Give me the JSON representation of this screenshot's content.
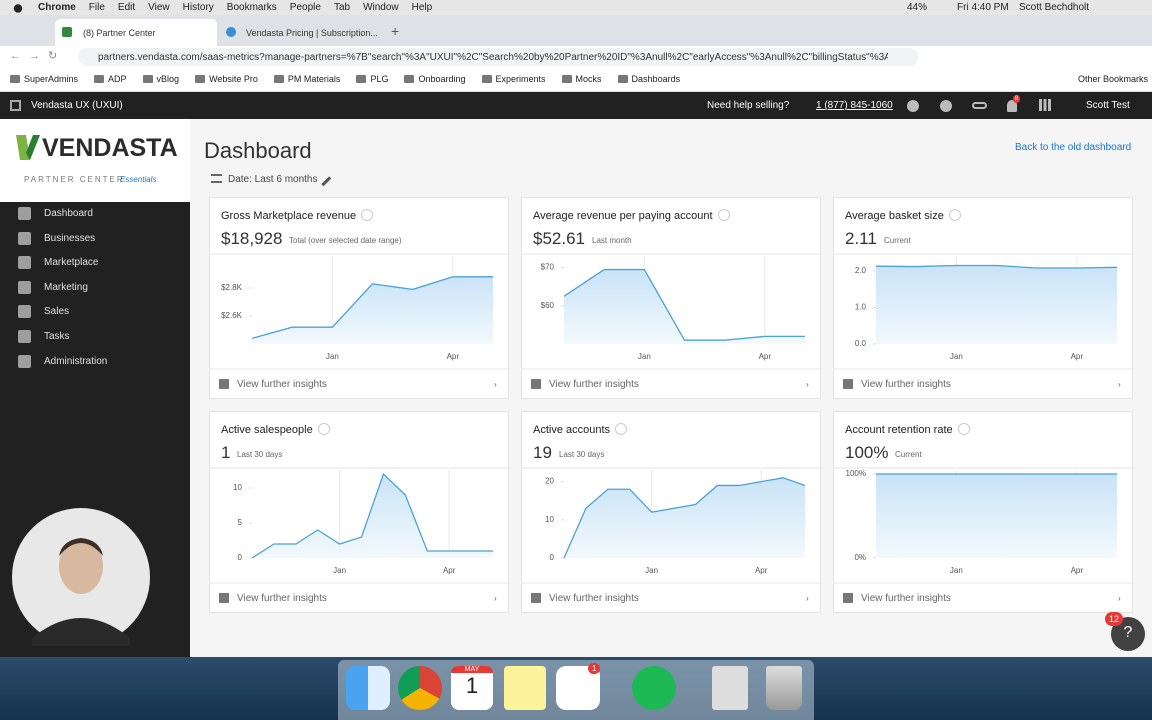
{
  "menu_bar": {
    "app": "Chrome",
    "items": [
      "File",
      "Edit",
      "View",
      "History",
      "Bookmarks",
      "People",
      "Tab",
      "Window",
      "Help"
    ],
    "battery": "44%",
    "clock": "Fri 4:40 PM",
    "user": "Scott Bechdholt"
  },
  "tabs": [
    "(8) Partner Center",
    "Vendasta Pricing | Subscription..."
  ],
  "url": "partners.vendasta.com/saas-metrics?manage-partners=%7B\"search\"%3A\"UXUI\"%2C\"Search%20by%20Partner%20ID\"%3Anull%2C\"earlyAccess\"%3Anull%2C\"billingStatus\"%3Anull...",
  "bookmarks": [
    "SuperAdmins",
    "ADP",
    "vBlog",
    "Website Pro",
    "PM Materials",
    "PLG",
    "Onboarding",
    "Experiments",
    "Mocks",
    "Dashboards"
  ],
  "other_bookmarks": "Other Bookmarks",
  "app_header": {
    "account": "Vendasta UX (UXUI)",
    "help": "Need help selling?",
    "phone": "1 (877) 845-1060",
    "notifications": "8",
    "user": "Scott Test"
  },
  "sidebar": {
    "logo": "VENDASTA",
    "subtitle": "PARTNER CENTER",
    "edition": "Essentials",
    "items": [
      "Dashboard",
      "Businesses",
      "Marketplace",
      "Marketing",
      "Sales",
      "Tasks",
      "Administration"
    ]
  },
  "page": {
    "title": "Dashboard",
    "filter": "Date: Last 6 months",
    "back_link": "Back to the old dashboard",
    "cards": [
      {
        "title": "Gross Marketplace revenue",
        "value": "$18,928",
        "note": "Total (over selected date range)",
        "link": "View further insights",
        "chart": {
          "type": "area",
          "categories": [
            null,
            null,
            "Jan",
            null,
            null,
            "Apr",
            null
          ],
          "values": [
            2440,
            2520,
            2520,
            2830,
            2790,
            2880,
            2880
          ],
          "ylim": [
            2400,
            3000
          ],
          "yticks": [
            {
              "value": 2600,
              "label": "$2.6K"
            },
            {
              "value": 2800,
              "label": "$2.8K"
            }
          ]
        }
      },
      {
        "title": "Average revenue per paying account",
        "value": "$52.61",
        "note": "Last month",
        "link": "View further insights",
        "chart": {
          "type": "area",
          "categories": [
            null,
            null,
            "Jan",
            null,
            null,
            "Apr",
            null
          ],
          "values": [
            62.5,
            69.5,
            69.5,
            51,
            51,
            52,
            52
          ],
          "ylim": [
            50,
            72
          ],
          "yticks": [
            {
              "value": 60,
              "label": "$60"
            },
            {
              "value": 70,
              "label": "$70"
            }
          ]
        }
      },
      {
        "title": "Average basket size",
        "value": "2.11",
        "note": "Current",
        "link": "View further insights",
        "chart": {
          "type": "area",
          "categories": [
            null,
            null,
            "Jan",
            null,
            null,
            "Apr",
            null
          ],
          "values": [
            2.13,
            2.12,
            2.15,
            2.15,
            2.08,
            2.08,
            2.1
          ],
          "ylim": [
            0,
            2.3
          ],
          "yticks": [
            {
              "value": 0,
              "label": "0.0"
            },
            {
              "value": 1,
              "label": "1.0"
            },
            {
              "value": 2,
              "label": "2.0"
            }
          ]
        }
      },
      {
        "title": "Active salespeople",
        "value": "1",
        "note": "Last 30 days",
        "link": "View further insights",
        "chart": {
          "type": "area",
          "categories": [
            null,
            null,
            null,
            null,
            "Jan",
            null,
            null,
            null,
            null,
            "Apr",
            null,
            null
          ],
          "values": [
            0,
            2,
            2,
            4,
            2,
            3,
            12,
            9,
            1,
            1,
            1,
            1
          ],
          "ylim": [
            0,
            12
          ],
          "yticks": [
            0,
            5,
            10
          ]
        }
      },
      {
        "title": "Active accounts",
        "value": "19",
        "note": "Last 30 days",
        "link": "View further insights",
        "chart": {
          "type": "area",
          "categories": [
            null,
            null,
            null,
            null,
            "Jan",
            null,
            null,
            null,
            null,
            "Apr",
            null,
            null
          ],
          "values": [
            0,
            13,
            18,
            18,
            12,
            13,
            14,
            19,
            19,
            20,
            21,
            19
          ],
          "ylim": [
            0,
            22
          ],
          "yticks": [
            0,
            10,
            20
          ]
        }
      },
      {
        "title": "Account retention rate",
        "value": "100%",
        "note": "Current",
        "link": "View further insights",
        "chart": {
          "type": "area",
          "categories": [
            null,
            null,
            "Jan",
            null,
            null,
            "Apr",
            null
          ],
          "values": [
            100,
            100,
            100,
            100,
            100,
            100,
            100
          ],
          "ylim": [
            0,
            100
          ],
          "yticks": [
            {
              "value": 0,
              "label": "0%"
            },
            {
              "value": 100,
              "label": "100%"
            }
          ]
        }
      }
    ]
  },
  "dock": {
    "calendar_month": "MAY",
    "calendar_day": "1",
    "slack_badge": "1"
  },
  "help_badge": "12"
}
